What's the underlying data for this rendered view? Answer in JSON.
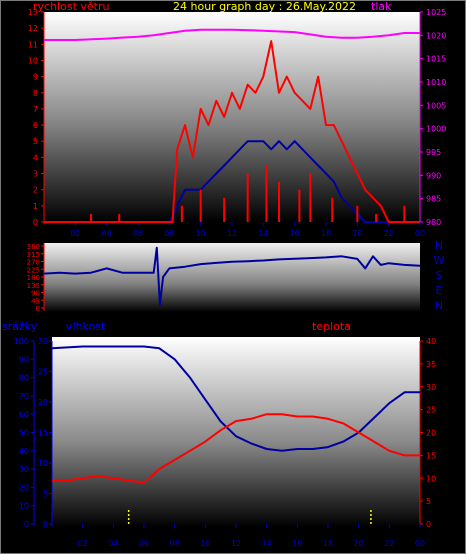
{
  "header": {
    "wind_label": "rychlost větru",
    "title": "24 hour graph day : 26.May.2022",
    "pressure_label": "tlak"
  },
  "colors": {
    "wind": "#ff0000",
    "gust": "#ffb000",
    "direction": "#0000a0",
    "pressure": "#ff00ff",
    "humidity": "#0000a0",
    "temperature": "#ff0000",
    "rain": "#ffff00",
    "left_axis": "#ff0000",
    "compass_axis": "#0000cc",
    "right_axis": "#ff00ff",
    "title": "#ffff00"
  },
  "chart_data": [
    {
      "type": "line",
      "x_unit": "hour of day",
      "x_ticks": [
        "02",
        "04",
        "06",
        "08",
        "10",
        "12",
        "14",
        "16",
        "18",
        "20",
        "22",
        "00"
      ],
      "y_left": {
        "label": "rychlost větru",
        "range": [
          0,
          13
        ],
        "ticks": [
          0,
          1,
          2,
          3,
          4,
          5,
          6,
          7,
          8,
          9,
          10,
          11,
          12,
          13
        ]
      },
      "y_right": {
        "label": "tlak",
        "range": [
          980,
          1025
        ],
        "ticks": [
          980,
          985,
          990,
          995,
          1000,
          1005,
          1010,
          1015,
          1020,
          1025
        ]
      },
      "series": [
        {
          "name": "tlak",
          "axis": "right",
          "x": [
            0,
            2,
            4,
            6,
            7,
            8,
            9,
            10,
            12,
            14,
            16,
            17,
            18,
            19,
            20,
            21,
            22,
            23,
            24
          ],
          "y": [
            1019,
            1019,
            1019.3,
            1019.7,
            1020,
            1020.5,
            1021,
            1021.2,
            1021.2,
            1021,
            1020.7,
            1020.2,
            1019.7,
            1019.5,
            1019.5,
            1019.7,
            1020,
            1020.5,
            1020.5
          ]
        },
        {
          "name": "wind speed (avg)",
          "axis": "left",
          "x": [
            0,
            8,
            8.3,
            8.5,
            9,
            9.5,
            10,
            10.5,
            11,
            11.5,
            12,
            12.5,
            13,
            13.5,
            14,
            14.5,
            15,
            15.5,
            16,
            16.5,
            17,
            17.5,
            18,
            18.5,
            19,
            19.5,
            20,
            20.5,
            21,
            24
          ],
          "y": [
            0,
            0,
            0.5,
            1,
            2,
            2,
            2,
            2.5,
            3,
            3.5,
            4,
            4.5,
            5,
            5,
            5,
            4.5,
            5,
            4.5,
            5,
            4.5,
            4,
            3.5,
            3,
            2.5,
            1.5,
            1,
            0.5,
            0,
            0,
            0
          ]
        },
        {
          "name": "wind speed (max)",
          "axis": "left",
          "x": [
            0,
            8.2,
            8.5,
            9,
            9.5,
            10,
            10.5,
            11,
            11.5,
            12,
            12.5,
            13,
            13.5,
            14,
            14.5,
            15,
            15.5,
            16,
            16.5,
            17,
            17.5,
            18,
            18.5,
            19,
            19.5,
            20,
            20.5,
            21,
            21.5,
            22,
            24
          ],
          "y": [
            0,
            0,
            4.5,
            6,
            4,
            7,
            6,
            7.5,
            6.5,
            8,
            7,
            8.5,
            8,
            9,
            11.2,
            8,
            9,
            8,
            7.5,
            7,
            9,
            6,
            6,
            5,
            4,
            3,
            2,
            1.5,
            1,
            0,
            0
          ]
        },
        {
          "name": "gusts",
          "axis": "left",
          "x": [
            3,
            4.8,
            8.8,
            10,
            11.5,
            13,
            14.2,
            15,
            16.3,
            17,
            18.4,
            20,
            21.2,
            23
          ],
          "y": [
            0.5,
            0.5,
            1,
            2,
            1.5,
            3,
            3.5,
            2.5,
            2,
            3,
            1.5,
            1,
            0.5,
            1
          ]
        }
      ]
    },
    {
      "type": "scatter",
      "x_unit": "hour of day",
      "y_left": {
        "range": [
          0,
          360
        ],
        "ticks": [
          0,
          45,
          90,
          135,
          180,
          225,
          270,
          315,
          360
        ]
      },
      "compass_labels": [
        "N",
        "W",
        "S",
        "E",
        "N"
      ],
      "series": [
        {
          "name": "wind direction",
          "x": [
            0,
            1,
            2,
            3,
            4,
            5,
            6,
            7,
            7.2,
            7.4,
            7.6,
            8,
            9,
            10,
            11,
            12,
            13,
            14,
            15,
            16,
            17,
            18,
            19,
            20,
            20.5,
            21,
            21.5,
            22,
            23,
            24
          ],
          "y": [
            200,
            205,
            200,
            205,
            230,
            205,
            205,
            205,
            350,
            20,
            180,
            230,
            240,
            255,
            262,
            268,
            272,
            276,
            282,
            286,
            290,
            294,
            300,
            285,
            230,
            300,
            250,
            260,
            250,
            245
          ]
        }
      ]
    },
    {
      "type": "line",
      "x_unit": "hour of day",
      "x_ticks": [
        "02",
        "04",
        "06",
        "08",
        "10",
        "12",
        "14",
        "16",
        "18",
        "20",
        "22",
        "00"
      ],
      "y_left": {
        "label": "srážky",
        "range": [
          0,
          100
        ],
        "ticks": [
          0,
          10,
          20,
          30,
          40,
          50,
          60,
          70,
          80,
          90,
          100
        ]
      },
      "y_left_inner": {
        "label": "vlhkost",
        "range": [
          0,
          30
        ],
        "ticks": [
          0,
          5,
          10,
          15,
          20,
          25,
          30
        ]
      },
      "y_right": {
        "label": "teplota",
        "range": [
          0,
          40
        ],
        "ticks": [
          0,
          5,
          10,
          15,
          20,
          25,
          30,
          35,
          40
        ]
      },
      "series": [
        {
          "name": "vlhkost",
          "axis": "left",
          "x": [
            0,
            2,
            4,
            6,
            7,
            8,
            9,
            10,
            11,
            12,
            13,
            14,
            15,
            16,
            17,
            18,
            19,
            20,
            21,
            22,
            23,
            24
          ],
          "y": [
            96,
            97,
            97,
            97,
            96,
            90,
            80,
            68,
            56,
            48,
            44,
            41,
            40,
            41,
            41,
            42,
            45,
            50,
            58,
            66,
            72,
            72
          ]
        },
        {
          "name": "teplota",
          "axis": "right",
          "x": [
            0,
            1,
            2,
            3,
            4,
            5,
            6,
            7,
            8,
            9,
            10,
            11,
            12,
            13,
            14,
            15,
            16,
            17,
            18,
            19,
            20,
            21,
            22,
            23,
            24
          ],
          "y": [
            9.5,
            9.5,
            10,
            10.5,
            10,
            9.5,
            9,
            12,
            14,
            16,
            18,
            20.5,
            22.5,
            23,
            24,
            24,
            23.5,
            23.5,
            23,
            22,
            20,
            18,
            16,
            15,
            15
          ]
        },
        {
          "name": "srážky",
          "axis": "left",
          "x": [
            5,
            20.8
          ],
          "y": [
            8,
            8
          ]
        }
      ]
    }
  ],
  "lower_header": {
    "rain_label": "srážky",
    "humidity_label": "vlhkost",
    "temperature_label": "teplota"
  }
}
